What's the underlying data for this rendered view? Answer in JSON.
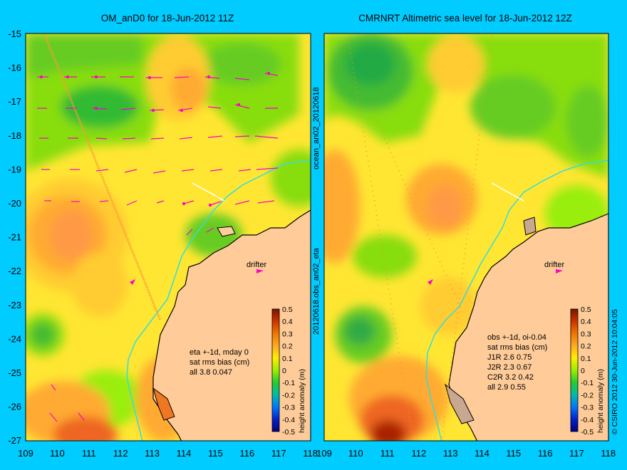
{
  "left_panel": {
    "title": "OM_anD0 for 18-Jun-2012 11Z",
    "x_ticks": [
      "109",
      "110",
      "111",
      "112",
      "113",
      "114",
      "115",
      "116",
      "117",
      "118"
    ],
    "y_ticks": [
      "-15",
      "-16",
      "-17",
      "-18",
      "-19",
      "-20",
      "-21",
      "-22",
      "-23",
      "-24",
      "-25",
      "-26",
      "-27"
    ],
    "drifter_label": "drifter",
    "stats": [
      "eta +-1d, mday 0",
      "sat rms bias (cm)",
      "all 3.8 0.047"
    ]
  },
  "right_panel": {
    "title": "CMRNRT Altimetric sea level  for 18-Jun-2012 12Z",
    "x_ticks": [
      "109",
      "110",
      "111",
      "112",
      "113",
      "114",
      "115",
      "116",
      "117",
      "118"
    ],
    "drifter_label": "drifter",
    "stats": [
      "obs +-1d, oi-0.04",
      "sat rms bias (cm)",
      "J1R   2.6 0.75",
      "J2R   2.3 0.67",
      "C2R   3.2 0.42",
      "all 2.9 0.55"
    ]
  },
  "colorbar": {
    "label": "height anomaly (m)",
    "ticks": [
      "0.5",
      "0.4",
      "0.3",
      "0.2",
      "0.1",
      "0",
      "-0.1",
      "-0.2",
      "-0.3",
      "-0.4",
      "-0.5"
    ]
  },
  "side_labels": {
    "mid_top": "ocean_an02_20120618",
    "mid_bottom": "20120618.obs_an02_eta",
    "right_edge": "© CSIRO 2012   30-Jun-2012 10:04:05"
  },
  "colors": {
    "background": "#00ccff",
    "land": "#ffcc99",
    "vector": "#ff00cc",
    "coastline_cyan": "#33dddd"
  }
}
